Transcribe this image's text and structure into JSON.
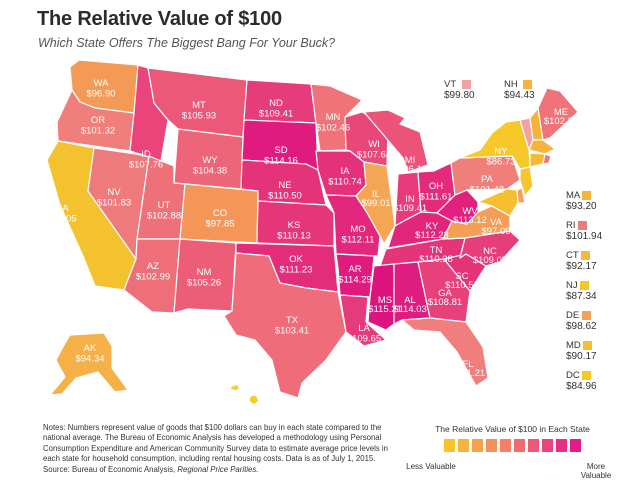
{
  "title": "The Relative Value of $100",
  "subtitle": "Which State Offers The Biggest Bang For Your Buck?",
  "notes_text": "Notes: Numbers represent value of goods that $100 dollars can buy in each state compared to the national average. The Bureau of Economic Analysis has developed a methodology using Personal Consumption Expenditure and American Community Survey data to estimate average price levels in each state for household consumption, including rental housing costs. Data is as of July 1, 2015.",
  "source_prefix": "Source: Bureau of Economic Analysis, ",
  "source_title": "Regional Price Parities.",
  "legend": {
    "title": "The Relative Value of $100 in Each State",
    "low_label": "Less Valuable",
    "high_label": "More Valuable",
    "colors": [
      "#f7c329",
      "#f6b23a",
      "#f5a24a",
      "#f49158",
      "#f27f66",
      "#f06b70",
      "#ee5878",
      "#eb437f",
      "#e82e84",
      "#e31c87"
    ]
  },
  "states": {
    "WA": {
      "abbr": "WA",
      "value": "$96.90",
      "color": "#f49a57"
    },
    "OR": {
      "abbr": "OR",
      "value": "$101.32",
      "color": "#f07e7a"
    },
    "CA": {
      "abbr": "CA",
      "value": "$89.05",
      "color": "#f4c22e"
    },
    "NV": {
      "abbr": "NV",
      "value": "$101.83",
      "color": "#ef7a7c"
    },
    "ID": {
      "abbr": "ID",
      "value": "$107.76",
      "color": "#e9457a"
    },
    "MT": {
      "abbr": "MT",
      "value": "$105.93",
      "color": "#ec5878"
    },
    "WY": {
      "abbr": "WY",
      "value": "$104.38",
      "color": "#ed6578"
    },
    "UT": {
      "abbr": "UT",
      "value": "$102.88",
      "color": "#ee7079"
    },
    "AZ": {
      "abbr": "AZ",
      "value": "$102.99",
      "color": "#ee6f79"
    },
    "CO": {
      "abbr": "CO",
      "value": "$97.85",
      "color": "#f39658"
    },
    "NM": {
      "abbr": "NM",
      "value": "$105.26",
      "color": "#ec5d78"
    },
    "ND": {
      "abbr": "ND",
      "value": "$109.41",
      "color": "#e63c7c"
    },
    "SD": {
      "abbr": "SD",
      "value": "$114.16",
      "color": "#e01b80"
    },
    "NE": {
      "abbr": "NE",
      "value": "$110.50",
      "color": "#e53379"
    },
    "KS": {
      "abbr": "KS",
      "value": "$110.13",
      "color": "#e5367a"
    },
    "OK": {
      "abbr": "OK",
      "value": "$111.23",
      "color": "#e32d7b"
    },
    "TX": {
      "abbr": "TX",
      "value": "$103.41",
      "color": "#ef6c7b"
    },
    "MN": {
      "abbr": "MN",
      "value": "$102.46",
      "color": "#ef7379"
    },
    "IA": {
      "abbr": "IA",
      "value": "$110.74",
      "color": "#e43179"
    },
    "MO": {
      "abbr": "MO",
      "value": "$112.11",
      "color": "#e2277c"
    },
    "AR": {
      "abbr": "AR",
      "value": "$114.29",
      "color": "#df1b7f"
    },
    "LA": {
      "abbr": "LA",
      "value": "$109.65",
      "color": "#e53a7b"
    },
    "WI": {
      "abbr": "WI",
      "value": "$107.64",
      "color": "#e9477a"
    },
    "IL": {
      "abbr": "IL",
      "value": "$99.01",
      "color": "#f4a655"
    },
    "MI": {
      "abbr": "MI",
      "value": "$106.16",
      "color": "#eb5378"
    },
    "IN": {
      "abbr": "IN",
      "value": "$109.41",
      "color": "#e63c7c"
    },
    "OH": {
      "abbr": "OH",
      "value": "$111.61",
      "color": "#e32a7b"
    },
    "KY": {
      "abbr": "KY",
      "value": "$112.23",
      "color": "#e2267c"
    },
    "TN": {
      "abbr": "TN",
      "value": "$110.38",
      "color": "#e4347a"
    },
    "MS": {
      "abbr": "MS",
      "value": "$115.21",
      "color": "#dd1380"
    },
    "AL": {
      "abbr": "AL",
      "value": "$114.03",
      "color": "#df1c7f"
    },
    "GA": {
      "abbr": "GA",
      "value": "$108.81",
      "color": "#e7407b"
    },
    "FL": {
      "abbr": "FL",
      "value": "$101.21",
      "color": "#f07e7c"
    },
    "SC": {
      "abbr": "SC",
      "value": "$110.50",
      "color": "#e53379"
    },
    "NC": {
      "abbr": "NC",
      "value": "$109.05",
      "color": "#e63e7b"
    },
    "VA": {
      "abbr": "VA",
      "value": "$97.09",
      "color": "#f49e57"
    },
    "WV": {
      "abbr": "WV",
      "value": "$113.12",
      "color": "#e1217d"
    },
    "PA": {
      "abbr": "PA",
      "value": "$101.42",
      "color": "#f07e7a"
    },
    "NY": {
      "abbr": "NY",
      "value": "$86.73",
      "color": "#f6c82a"
    },
    "ME": {
      "abbr": "ME",
      "value": "$102.35",
      "color": "#ef7379"
    },
    "AK": {
      "abbr": "AK",
      "value": "$94.34",
      "color": "#f5b047"
    },
    "HI": {
      "abbr": "HI",
      "value": "$86.06",
      "color": "#f7ca29"
    }
  },
  "small_states": {
    "VT": {
      "abbr": "VT",
      "value": "$99.80",
      "color": "#f4a1a1"
    },
    "NH": {
      "abbr": "NH",
      "value": "$94.43",
      "color": "#f5b33c"
    },
    "MA": {
      "abbr": "MA",
      "value": "$93.20",
      "color": "#f5b33c"
    },
    "RI": {
      "abbr": "RI",
      "value": "$101.94",
      "color": "#ef7a7c"
    },
    "CT": {
      "abbr": "CT",
      "value": "$92.17",
      "color": "#f6bb36"
    },
    "NJ": {
      "abbr": "NJ",
      "value": "$87.34",
      "color": "#f6c52b"
    },
    "DE": {
      "abbr": "DE",
      "value": "$98.62",
      "color": "#f4a15a"
    },
    "MD": {
      "abbr": "MD",
      "value": "$90.17",
      "color": "#f6bf30"
    },
    "DC": {
      "abbr": "DC",
      "value": "$84.96",
      "color": "#f7c928"
    }
  }
}
